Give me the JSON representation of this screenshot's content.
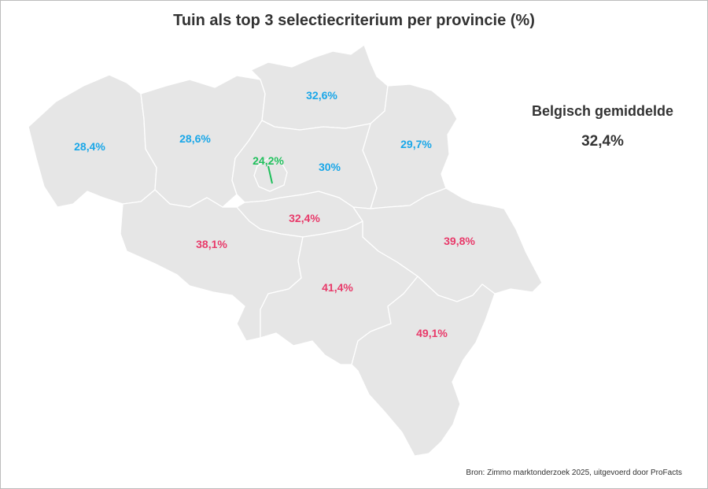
{
  "title": "Tuin als top 3 selectiecriterium per provincie (%)",
  "average": {
    "label": "Belgisch gemiddelde",
    "value": "32,4%"
  },
  "source": "Bron: Zimmo marktonderzoek 2025, uitgevoerd door ProFacts",
  "colors": {
    "low": "#1aa7e8",
    "lowest": "#1fbf5b",
    "high": "#e83a6a",
    "map_fill": "#e6e6e6",
    "border": "#ffffff"
  },
  "regions": [
    {
      "id": "west-vlaanderen",
      "label": "28,4%",
      "value": 28.4,
      "color": "#1aa7e8"
    },
    {
      "id": "oost-vlaanderen",
      "label": "28,6%",
      "value": 28.6,
      "color": "#1aa7e8"
    },
    {
      "id": "antwerpen",
      "label": "32,6%",
      "value": 32.6,
      "color": "#1aa7e8"
    },
    {
      "id": "limburg",
      "label": "29,7%",
      "value": 29.7,
      "color": "#1aa7e8"
    },
    {
      "id": "brussel",
      "label": "24,2%",
      "value": 24.2,
      "color": "#1fbf5b"
    },
    {
      "id": "vlaams-brabant",
      "label": "30%",
      "value": 30.0,
      "color": "#1aa7e8"
    },
    {
      "id": "waals-brabant",
      "label": "32,4%",
      "value": 32.4,
      "color": "#e83a6a"
    },
    {
      "id": "henegouwen",
      "label": "38,1%",
      "value": 38.1,
      "color": "#e83a6a"
    },
    {
      "id": "luik",
      "label": "39,8%",
      "value": 39.8,
      "color": "#e83a6a"
    },
    {
      "id": "namen",
      "label": "41,4%",
      "value": 41.4,
      "color": "#e83a6a"
    },
    {
      "id": "luxemburg",
      "label": "49,1%",
      "value": 49.1,
      "color": "#e83a6a"
    }
  ]
}
